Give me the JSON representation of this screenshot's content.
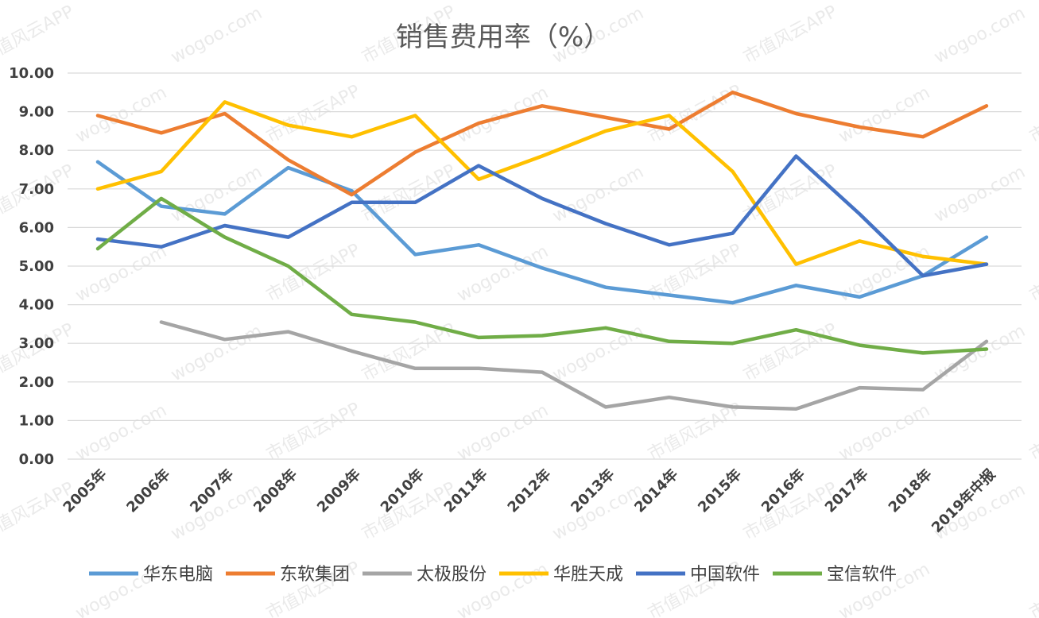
{
  "chart_data": {
    "type": "line",
    "title": "销售费用率（%）",
    "categories": [
      "2005年",
      "2006年",
      "2007年",
      "2008年",
      "2009年",
      "2010年",
      "2011年",
      "2012年",
      "2013年",
      "2014年",
      "2015年",
      "2016年",
      "2017年",
      "2018年",
      "2019年中报"
    ],
    "ylim": [
      0,
      10
    ],
    "yticks": [
      "0.00",
      "1.00",
      "2.00",
      "3.00",
      "4.00",
      "5.00",
      "6.00",
      "7.00",
      "8.00",
      "9.00",
      "10.00"
    ],
    "grid": true,
    "legend_position": "bottom",
    "series": [
      {
        "name": "华东电脑",
        "color": "#5B9BD5",
        "values": [
          7.7,
          6.55,
          6.35,
          7.55,
          6.95,
          5.3,
          5.55,
          4.95,
          4.45,
          4.25,
          4.05,
          4.5,
          4.2,
          4.75,
          5.75
        ]
      },
      {
        "name": "东软集团",
        "color": "#ED7D31",
        "values": [
          8.9,
          8.45,
          8.95,
          7.75,
          6.85,
          7.95,
          8.7,
          9.15,
          8.85,
          8.55,
          9.5,
          8.95,
          8.6,
          8.35,
          9.15
        ]
      },
      {
        "name": "太极股份",
        "color": "#A5A5A5",
        "values": [
          null,
          3.55,
          3.1,
          3.3,
          2.8,
          2.35,
          2.35,
          2.25,
          1.35,
          1.6,
          1.35,
          1.3,
          1.85,
          1.8,
          3.05
        ]
      },
      {
        "name": "华胜天成",
        "color": "#FFC000",
        "values": [
          7.0,
          7.45,
          9.25,
          8.65,
          8.35,
          8.9,
          7.25,
          7.85,
          8.5,
          8.9,
          7.45,
          5.05,
          5.65,
          5.25,
          5.05
        ]
      },
      {
        "name": "中国软件",
        "color": "#4472C4",
        "values": [
          5.7,
          5.5,
          6.05,
          5.75,
          6.65,
          6.65,
          7.6,
          6.75,
          6.1,
          5.55,
          5.85,
          7.85,
          6.35,
          4.75,
          5.05
        ]
      },
      {
        "name": "宝信软件",
        "color": "#70AD47",
        "values": [
          5.45,
          6.75,
          5.75,
          5.0,
          3.75,
          3.55,
          3.15,
          3.2,
          3.4,
          3.05,
          3.0,
          3.35,
          2.95,
          2.75,
          2.85
        ]
      }
    ]
  },
  "watermark": {
    "cn": "市值风云APP",
    "en": "wogoo.com"
  }
}
